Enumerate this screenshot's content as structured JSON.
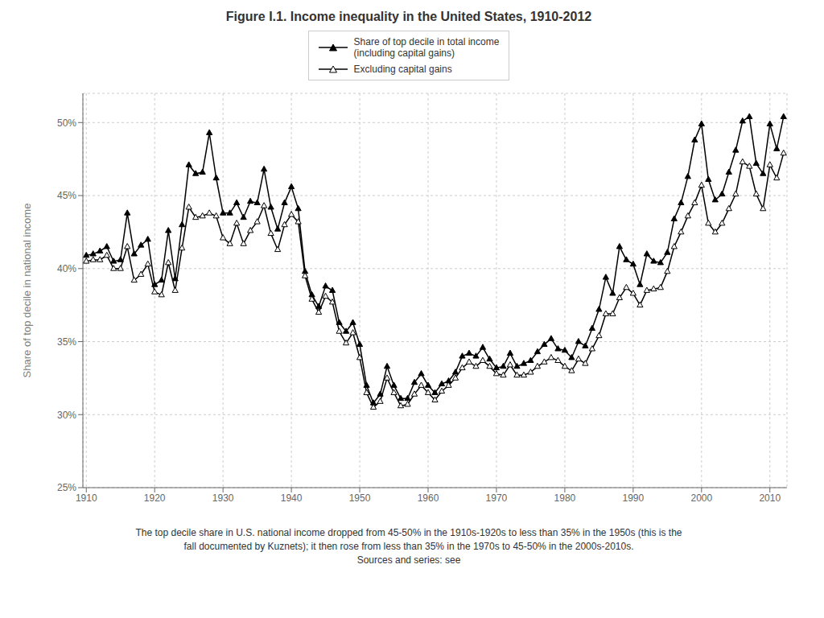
{
  "chart_data": {
    "type": "line",
    "title": "Figure I.1. Income inequality in the United States, 1910-2012",
    "y_label": "Share of top decile in national income",
    "annotations": [
      "The top decile share in U.S. national income dropped from 45-50% in the 1910s-1920s to less than 35% in the 1950s (this is the",
      "fall documented by Kuznets); it then rose from less than 35% in the 1970s to 45-50% in the 2000s-2010s.",
      "Sources and series: see"
    ],
    "x": [
      1910,
      1911,
      1912,
      1913,
      1914,
      1915,
      1916,
      1917,
      1918,
      1919,
      1920,
      1921,
      1922,
      1923,
      1924,
      1925,
      1926,
      1927,
      1928,
      1929,
      1930,
      1931,
      1932,
      1933,
      1934,
      1935,
      1936,
      1937,
      1938,
      1939,
      1940,
      1941,
      1942,
      1943,
      1944,
      1945,
      1946,
      1947,
      1948,
      1949,
      1950,
      1951,
      1952,
      1953,
      1954,
      1955,
      1956,
      1957,
      1958,
      1959,
      1960,
      1961,
      1962,
      1963,
      1964,
      1965,
      1966,
      1967,
      1968,
      1969,
      1970,
      1971,
      1972,
      1973,
      1974,
      1975,
      1976,
      1977,
      1978,
      1979,
      1980,
      1981,
      1982,
      1983,
      1984,
      1985,
      1986,
      1987,
      1988,
      1989,
      1990,
      1991,
      1992,
      1993,
      1994,
      1995,
      1996,
      1997,
      1998,
      1999,
      2000,
      2001,
      2002,
      2003,
      2004,
      2005,
      2006,
      2007,
      2008,
      2009,
      2010,
      2011,
      2012
    ],
    "series": [
      {
        "name": "Share of top decile in total income\n(including capital gains)",
        "color": "#000000",
        "marker": "triangle",
        "values": [
          40.9,
          41.0,
          41.2,
          41.5,
          40.5,
          40.6,
          43.8,
          41.0,
          41.6,
          42.0,
          38.9,
          39.2,
          42.6,
          39.3,
          43.0,
          47.1,
          46.5,
          46.6,
          49.3,
          46.2,
          43.8,
          43.8,
          44.5,
          43.5,
          44.6,
          44.5,
          46.8,
          44.2,
          42.7,
          44.5,
          45.6,
          44.1,
          39.8,
          38.2,
          37.4,
          38.8,
          38.5,
          36.3,
          35.7,
          36.3,
          34.8,
          32.0,
          30.8,
          31.4,
          33.3,
          32.0,
          31.1,
          31.1,
          32.2,
          32.8,
          32.0,
          31.5,
          32.1,
          32.3,
          32.9,
          34.0,
          34.2,
          34.0,
          34.6,
          33.8,
          33.2,
          33.3,
          34.2,
          33.3,
          33.5,
          33.7,
          34.3,
          34.8,
          35.2,
          34.5,
          34.4,
          33.9,
          35.0,
          34.7,
          35.9,
          37.2,
          39.4,
          38.3,
          41.5,
          40.6,
          40.3,
          38.9,
          41.0,
          40.5,
          40.4,
          41.1,
          43.4,
          44.5,
          46.3,
          48.8,
          49.9,
          46.1,
          44.7,
          45.1,
          46.6,
          48.1,
          50.1,
          50.4,
          47.2,
          46.5,
          49.9,
          48.2,
          50.4
        ]
      },
      {
        "name": "Excluding capital gains",
        "color": "#000000",
        "marker": "triangle_open",
        "values": [
          40.5,
          40.6,
          40.6,
          40.9,
          40.0,
          40.0,
          41.5,
          39.2,
          39.6,
          40.3,
          38.4,
          38.2,
          40.4,
          38.5,
          41.4,
          44.2,
          43.5,
          43.6,
          43.8,
          43.6,
          42.1,
          41.7,
          43.1,
          41.7,
          42.6,
          43.2,
          44.3,
          42.4,
          41.3,
          43.0,
          43.7,
          43.2,
          39.5,
          37.9,
          37.0,
          38.1,
          37.7,
          35.7,
          34.9,
          35.6,
          33.9,
          31.5,
          30.5,
          30.9,
          32.5,
          31.5,
          30.6,
          30.7,
          31.4,
          32.0,
          31.5,
          31.0,
          31.6,
          32.0,
          32.5,
          33.2,
          33.6,
          33.3,
          33.7,
          33.3,
          32.8,
          32.7,
          33.4,
          32.7,
          32.7,
          32.9,
          33.3,
          33.6,
          33.9,
          33.7,
          33.3,
          33.0,
          33.8,
          33.5,
          34.5,
          35.4,
          36.9,
          36.9,
          38.0,
          38.7,
          38.3,
          37.5,
          38.5,
          38.6,
          38.7,
          39.8,
          41.5,
          42.5,
          43.6,
          44.5,
          45.7,
          43.1,
          42.5,
          43.1,
          44.1,
          45.1,
          47.3,
          47.0,
          45.1,
          44.1,
          47.1,
          46.2,
          47.9
        ]
      }
    ],
    "xlim": [
      1909.5,
      2012.5
    ],
    "ylim": [
      25,
      52
    ],
    "xticks": [
      1910,
      1920,
      1930,
      1940,
      1950,
      1960,
      1970,
      1980,
      1990,
      2000,
      2010
    ],
    "yticks": [
      {
        "value": 25,
        "label": "25%"
      },
      {
        "value": 30,
        "label": "30%"
      },
      {
        "value": 35,
        "label": "35%"
      },
      {
        "value": 40,
        "label": "40%"
      },
      {
        "value": 45,
        "label": "45%"
      },
      {
        "value": 50,
        "label": "50%"
      }
    ],
    "grid": true,
    "legend": "top"
  }
}
